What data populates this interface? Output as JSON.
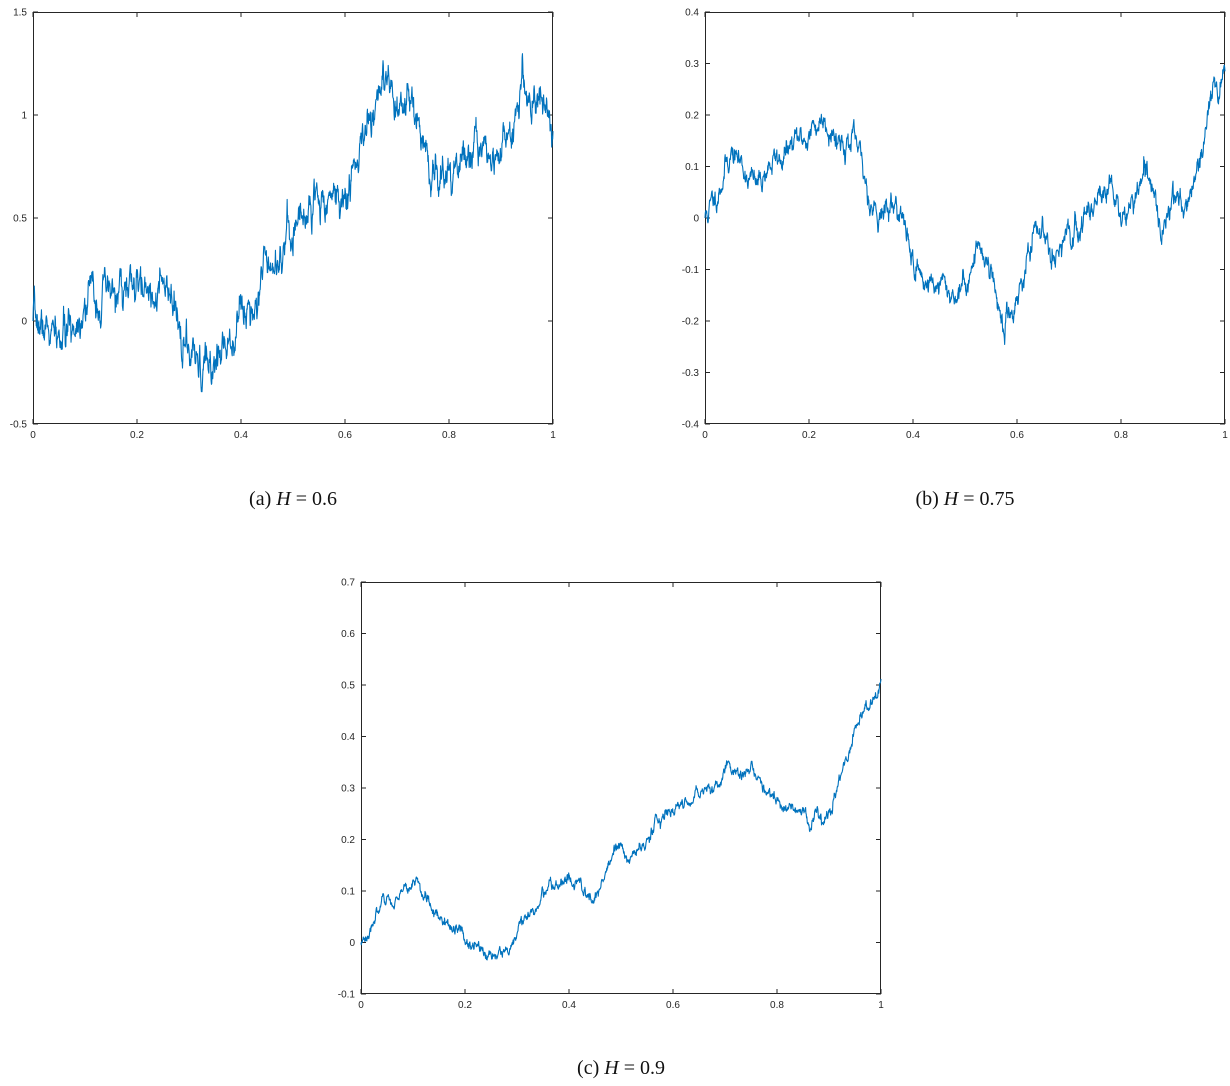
{
  "chart_data": [
    {
      "type": "line",
      "caption": {
        "tag": "(a)",
        "var": "H",
        "op": "=",
        "value": "0.6"
      },
      "xlim": [
        0,
        1
      ],
      "ylim": [
        -0.5,
        1.5
      ],
      "x_ticks": [
        "0",
        "0.2",
        "0.4",
        "0.6",
        "0.8",
        "1"
      ],
      "y_ticks": [
        "-0.5",
        "0",
        "0.5",
        "1",
        "1.5"
      ],
      "grid": false,
      "series": [
        {
          "color": "#0072BD",
          "hurst": 0.6,
          "seed": 7,
          "x": [
            0,
            0.03,
            0.05,
            0.08,
            0.11,
            0.13,
            0.16,
            0.19,
            0.22,
            0.25,
            0.27,
            0.3,
            0.32,
            0.35,
            0.37,
            0.4,
            0.43,
            0.45,
            0.47,
            0.5,
            0.53,
            0.55,
            0.58,
            0.6,
            0.62,
            0.65,
            0.675,
            0.7,
            0.73,
            0.75,
            0.78,
            0.8,
            0.83,
            0.86,
            0.88,
            0.9,
            0.92,
            0.94,
            0.96,
            0.98,
            1.0
          ],
          "y": [
            0,
            -0.05,
            -0.1,
            -0.02,
            0.15,
            0.1,
            0.14,
            0.16,
            0.15,
            0.15,
            0.05,
            -0.18,
            -0.25,
            -0.2,
            -0.1,
            0.05,
            0.1,
            0.35,
            0.3,
            0.45,
            0.55,
            0.6,
            0.62,
            0.58,
            0.75,
            1.0,
            1.15,
            1.0,
            1.05,
            0.85,
            0.7,
            0.68,
            0.8,
            0.85,
            0.85,
            0.82,
            0.9,
            1.18,
            1.1,
            1.05,
            1.0
          ]
        }
      ]
    },
    {
      "type": "line",
      "caption": {
        "tag": "(b)",
        "var": "H",
        "op": "=",
        "value": "0.75"
      },
      "xlim": [
        0,
        1
      ],
      "ylim": [
        -0.4,
        0.4
      ],
      "x_ticks": [
        "0",
        "0.2",
        "0.4",
        "0.6",
        "0.8",
        "1"
      ],
      "y_ticks": [
        "-0.4",
        "-0.3",
        "-0.2",
        "-0.1",
        "0",
        "0.1",
        "0.2",
        "0.3",
        "0.4"
      ],
      "grid": false,
      "series": [
        {
          "color": "#0072BD",
          "hurst": 0.75,
          "seed": 11,
          "x": [
            0,
            0.02,
            0.05,
            0.08,
            0.1,
            0.12,
            0.15,
            0.18,
            0.2,
            0.23,
            0.25,
            0.27,
            0.29,
            0.32,
            0.34,
            0.37,
            0.4,
            0.42,
            0.45,
            0.48,
            0.5,
            0.53,
            0.55,
            0.575,
            0.6,
            0.63,
            0.65,
            0.67,
            0.7,
            0.73,
            0.76,
            0.78,
            0.81,
            0.84,
            0.86,
            0.88,
            0.9,
            0.93,
            0.95,
            0.97,
            1.0
          ],
          "y": [
            0,
            0.04,
            0.13,
            0.09,
            0.06,
            0.1,
            0.12,
            0.15,
            0.16,
            0.2,
            0.16,
            0.15,
            0.14,
            0.03,
            0.01,
            0.03,
            -0.08,
            -0.12,
            -0.13,
            -0.15,
            -0.13,
            -0.05,
            -0.1,
            -0.22,
            -0.15,
            -0.05,
            -0.02,
            -0.06,
            -0.05,
            0.0,
            0.06,
            0.05,
            0.0,
            0.07,
            0.06,
            -0.03,
            0.05,
            0.03,
            0.1,
            0.2,
            0.3
          ]
        }
      ]
    },
    {
      "type": "line",
      "caption": {
        "tag": "(c)",
        "var": "H",
        "op": "=",
        "value": "0.9"
      },
      "xlim": [
        0,
        1
      ],
      "ylim": [
        -0.1,
        0.7
      ],
      "x_ticks": [
        "0",
        "0.2",
        "0.4",
        "0.6",
        "0.8",
        "1"
      ],
      "y_ticks": [
        "-0.1",
        "0",
        "0.1",
        "0.2",
        "0.3",
        "0.4",
        "0.5",
        "0.6",
        "0.7"
      ],
      "grid": false,
      "series": [
        {
          "color": "#0072BD",
          "hurst": 0.9,
          "seed": 3,
          "x": [
            0,
            0.03,
            0.06,
            0.1,
            0.12,
            0.15,
            0.18,
            0.22,
            0.25,
            0.28,
            0.32,
            0.35,
            0.37,
            0.4,
            0.42,
            0.45,
            0.48,
            0.5,
            0.53,
            0.55,
            0.58,
            0.6,
            0.63,
            0.66,
            0.68,
            0.7,
            0.72,
            0.75,
            0.78,
            0.8,
            0.82,
            0.85,
            0.87,
            0.9,
            0.92,
            0.95,
            0.97,
            1.0
          ],
          "y": [
            0,
            0.06,
            0.08,
            0.11,
            0.1,
            0.05,
            0.02,
            -0.01,
            -0.03,
            -0.02,
            0.04,
            0.1,
            0.11,
            0.12,
            0.1,
            0.09,
            0.15,
            0.18,
            0.18,
            0.2,
            0.25,
            0.25,
            0.27,
            0.3,
            0.31,
            0.34,
            0.33,
            0.33,
            0.3,
            0.28,
            0.26,
            0.24,
            0.24,
            0.25,
            0.3,
            0.4,
            0.46,
            0.51
          ]
        }
      ]
    }
  ]
}
